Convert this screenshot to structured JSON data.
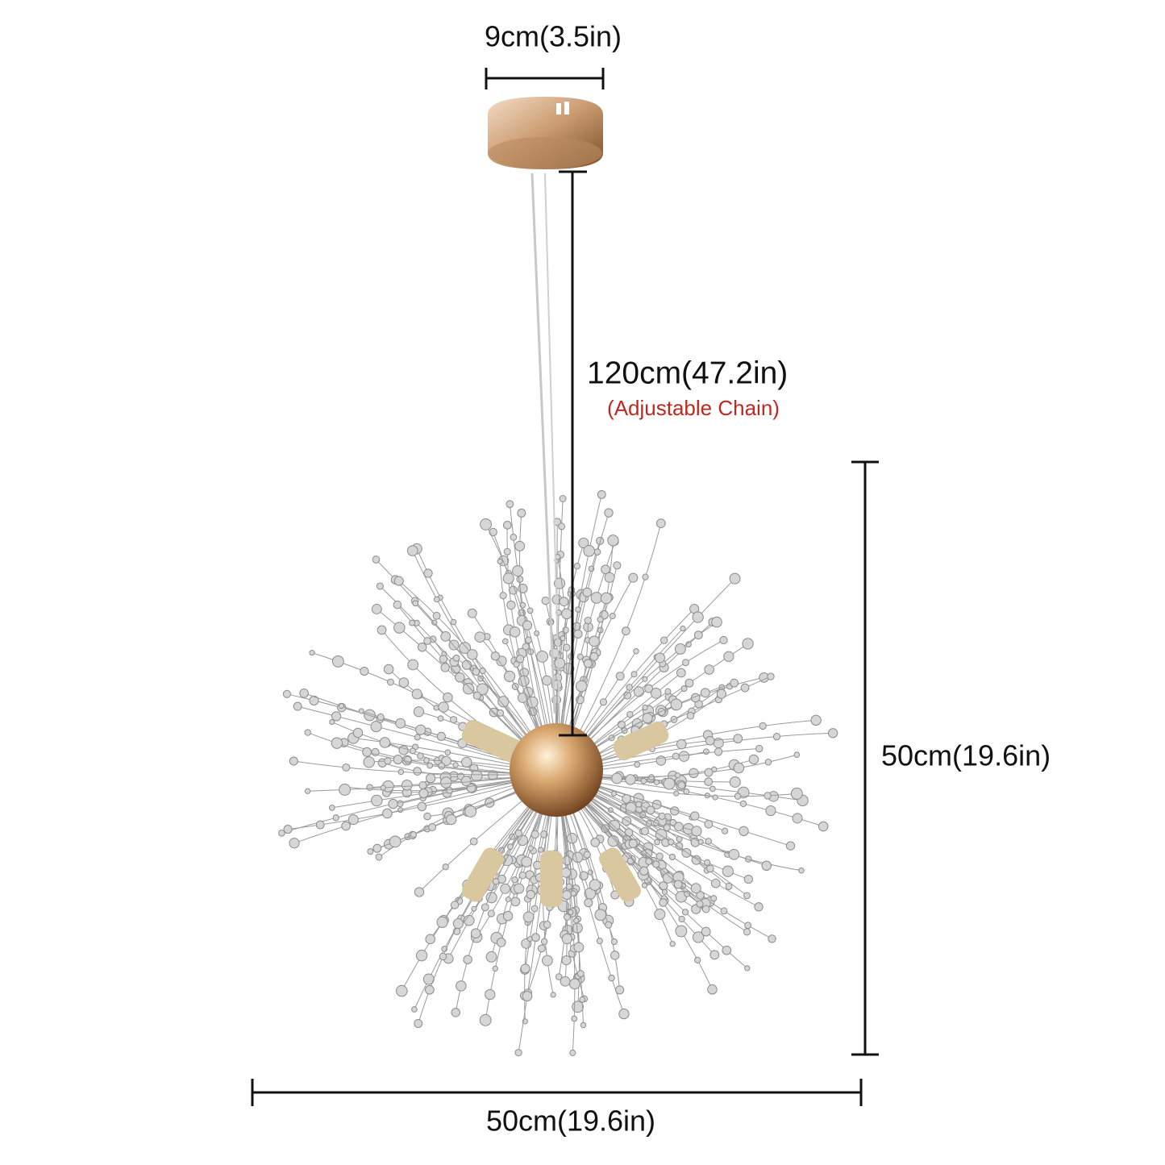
{
  "dimensions": {
    "canopy_width": {
      "label": "9cm(3.5in)"
    },
    "chain_length": {
      "label": "120cm(47.2in)",
      "note": "(Adjustable Chain)"
    },
    "height": {
      "label": "50cm(19.6in)"
    },
    "width": {
      "label": "50cm(19.6in)"
    }
  }
}
